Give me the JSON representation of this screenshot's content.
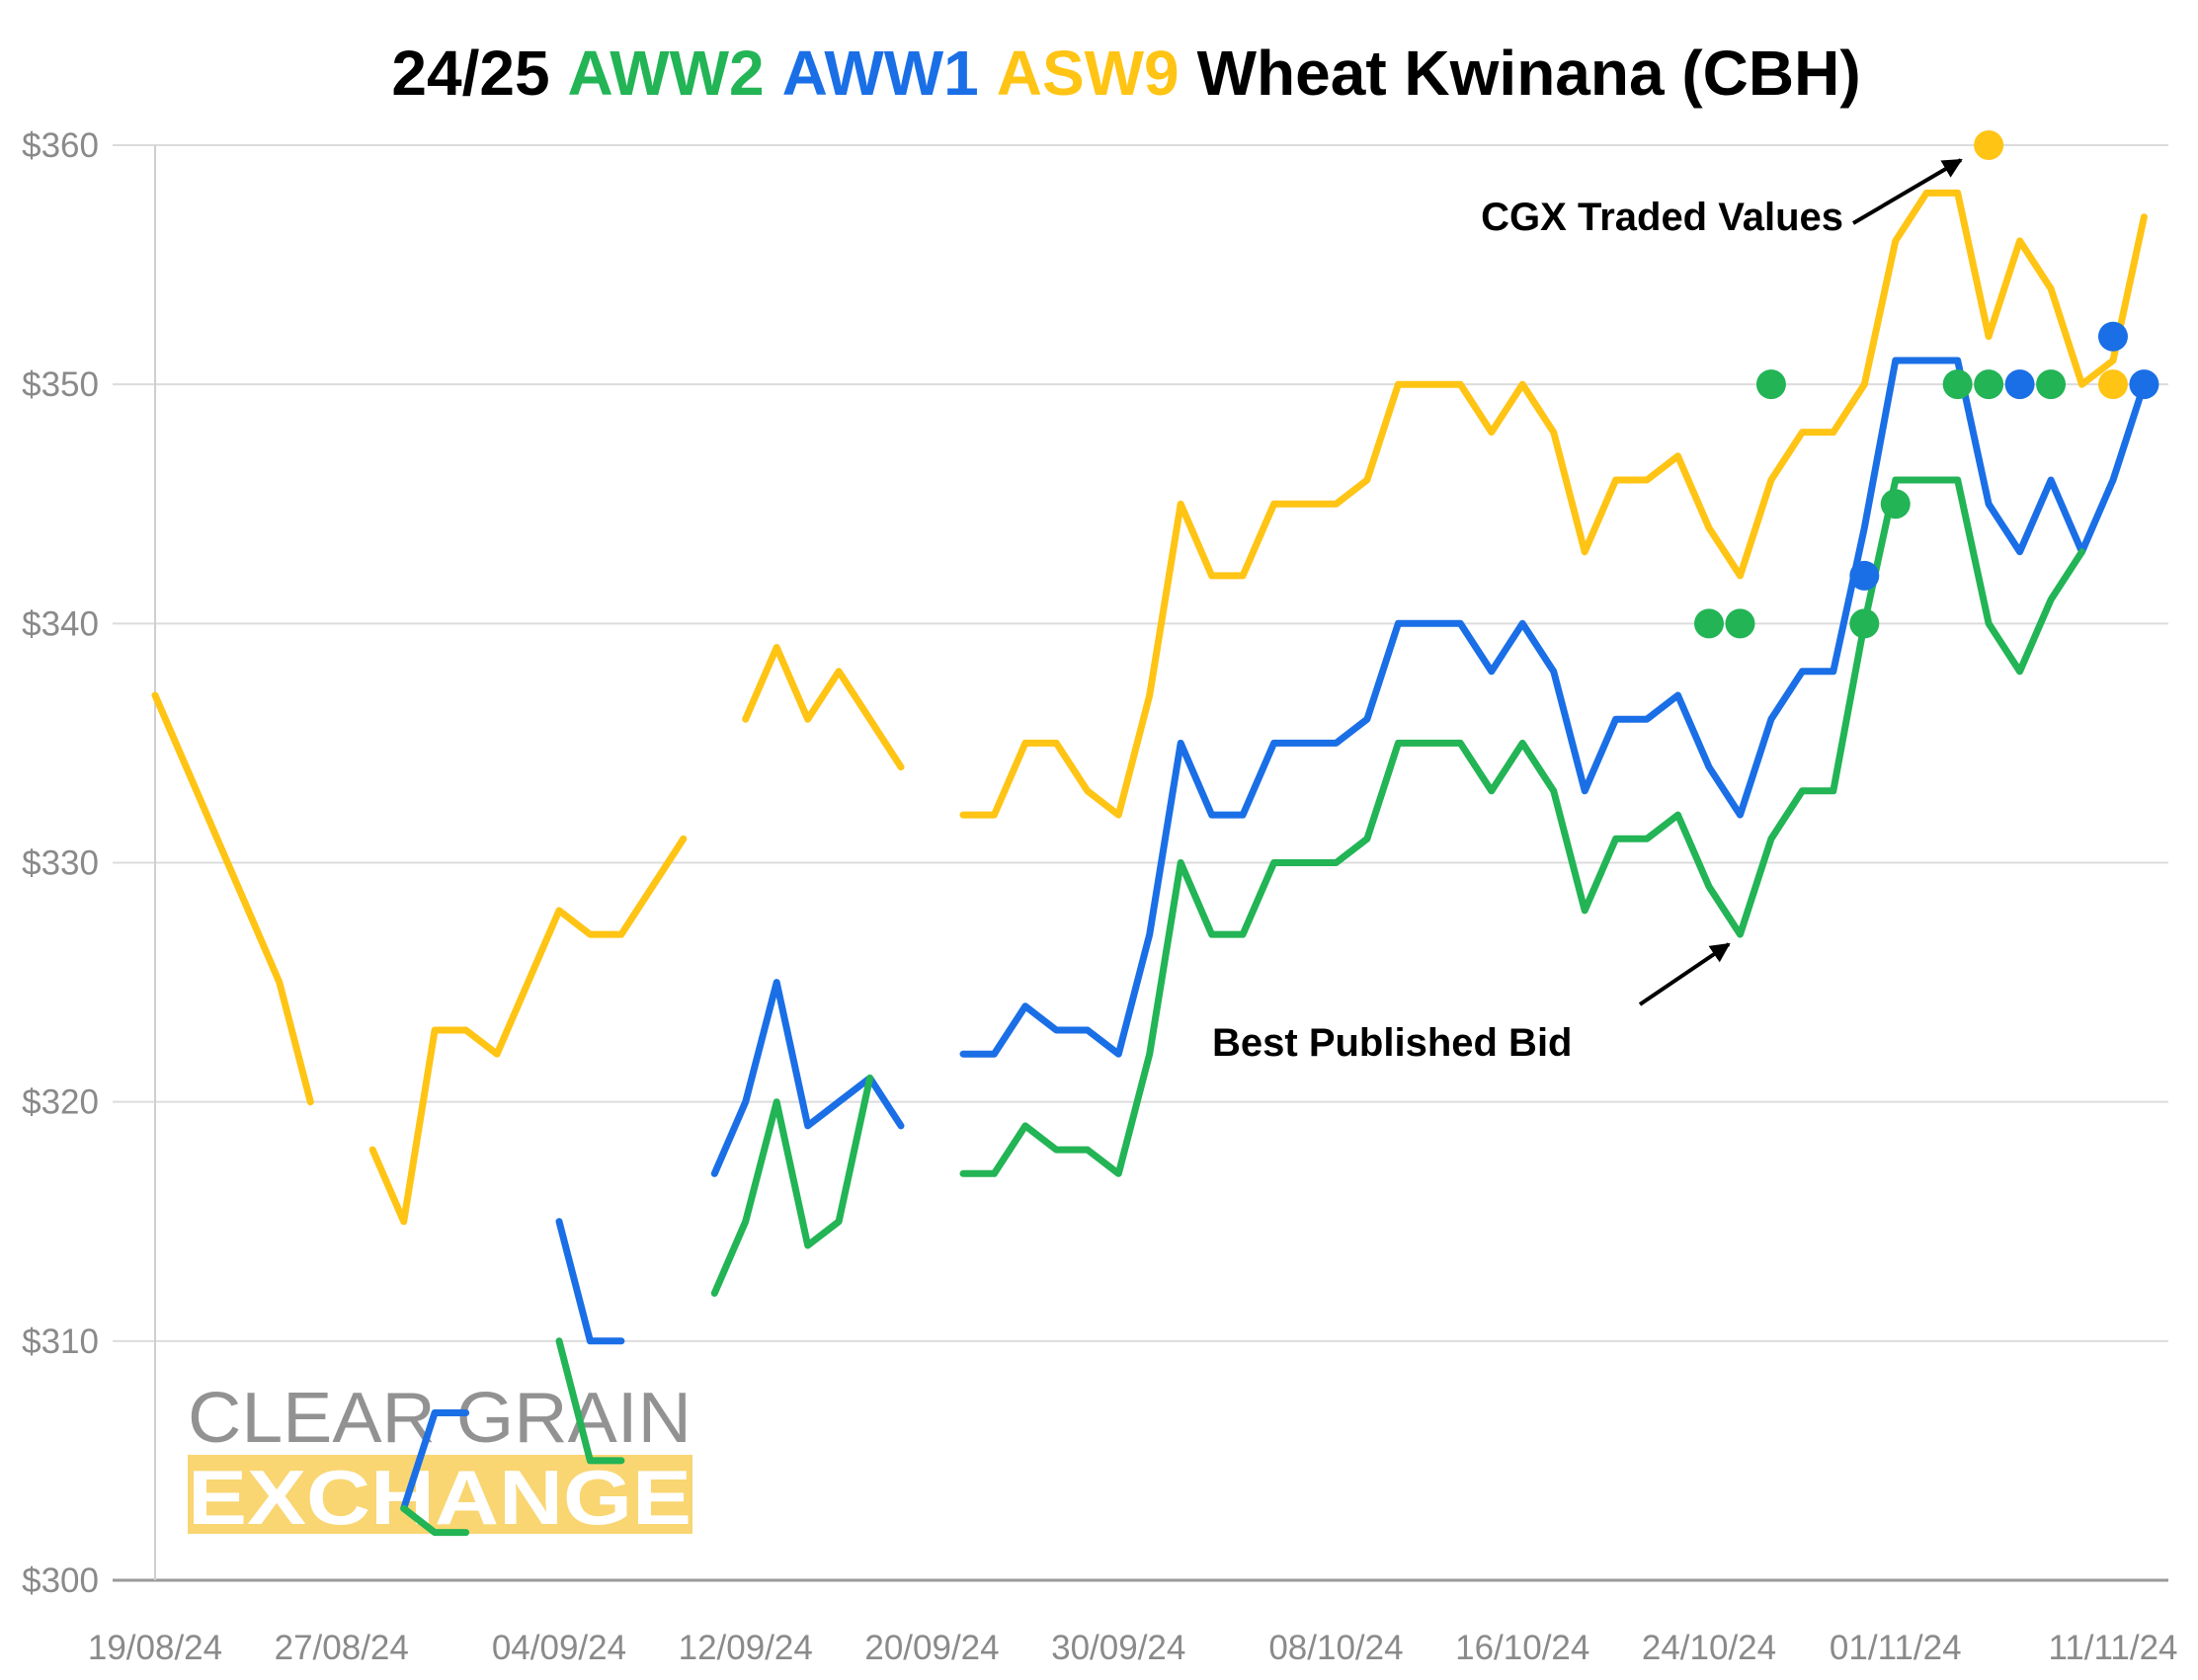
{
  "chart_data": {
    "type": "line",
    "title": [
      "24/25",
      "Wheat Kwinana (CBH)"
    ],
    "categories": [
      "19/08/24",
      null,
      null,
      null,
      null,
      null,
      "27/08/24",
      null,
      null,
      null,
      null,
      null,
      null,
      "04/09/24",
      null,
      null,
      null,
      null,
      null,
      "12/09/24",
      null,
      null,
      null,
      null,
      null,
      "20/09/24",
      null,
      null,
      null,
      null,
      null,
      "30/09/24",
      null,
      null,
      null,
      null,
      null,
      null,
      "08/10/24",
      null,
      null,
      null,
      null,
      null,
      "16/10/24",
      null,
      null,
      null,
      null,
      null,
      "24/10/24",
      null,
      null,
      null,
      null,
      null,
      "01/11/24",
      null,
      null,
      null,
      null,
      null,
      null,
      "11/11/24",
      null
    ],
    "series": [
      {
        "name": "ASW9",
        "color": "#ffc414",
        "values": [
          337,
          334,
          331,
          328,
          325,
          320,
          null,
          318,
          315,
          323,
          323,
          322,
          325,
          328,
          327,
          327,
          329,
          331,
          null,
          336,
          339,
          336,
          338,
          336,
          334,
          null,
          332,
          332,
          335,
          335,
          333,
          332,
          337,
          345,
          342,
          342,
          345,
          345,
          345,
          346,
          350,
          350,
          350,
          348,
          350,
          348,
          343,
          346,
          346,
          347,
          344,
          342,
          346,
          348,
          348,
          350,
          356,
          358,
          358,
          352,
          356,
          354,
          350,
          351,
          357
        ],
        "traded": [
          null,
          null,
          null,
          null,
          null,
          null,
          null,
          null,
          null,
          null,
          null,
          null,
          null,
          null,
          null,
          null,
          null,
          null,
          null,
          null,
          null,
          null,
          null,
          null,
          null,
          null,
          null,
          null,
          null,
          null,
          null,
          null,
          null,
          null,
          null,
          null,
          null,
          null,
          null,
          null,
          null,
          null,
          null,
          null,
          null,
          null,
          null,
          null,
          null,
          null,
          null,
          null,
          null,
          null,
          null,
          null,
          null,
          null,
          null,
          360,
          null,
          null,
          null,
          350,
          null
        ]
      },
      {
        "name": "AWW1",
        "color": "#1a6fe6",
        "values": [
          null,
          null,
          null,
          null,
          null,
          null,
          null,
          null,
          303,
          307,
          307,
          null,
          null,
          315,
          310,
          310,
          null,
          null,
          317,
          320,
          325,
          319,
          320,
          321,
          319,
          null,
          322,
          322,
          324,
          323,
          323,
          322,
          327,
          335,
          332,
          332,
          335,
          335,
          335,
          336,
          340,
          340,
          340,
          338,
          340,
          338,
          333,
          336,
          336,
          337,
          334,
          332,
          336,
          338,
          338,
          344,
          351,
          351,
          351,
          345,
          343,
          346,
          343,
          346,
          350
        ],
        "traded": [
          null,
          null,
          null,
          null,
          null,
          null,
          null,
          null,
          null,
          null,
          null,
          null,
          null,
          null,
          null,
          null,
          null,
          null,
          null,
          null,
          null,
          null,
          null,
          null,
          null,
          null,
          null,
          null,
          null,
          null,
          null,
          null,
          null,
          null,
          null,
          null,
          null,
          null,
          null,
          null,
          null,
          null,
          null,
          null,
          null,
          null,
          null,
          null,
          null,
          null,
          null,
          null,
          null,
          null,
          null,
          342,
          null,
          null,
          null,
          null,
          350,
          null,
          null,
          352,
          350
        ]
      },
      {
        "name": "AWW2",
        "color": "#22b455",
        "values": [
          null,
          null,
          null,
          null,
          null,
          null,
          null,
          null,
          303,
          302,
          302,
          null,
          null,
          310,
          305,
          305,
          null,
          null,
          312,
          315,
          320,
          314,
          315,
          321,
          null,
          null,
          317,
          317,
          319,
          318,
          318,
          317,
          322,
          330,
          327,
          327,
          330,
          330,
          330,
          331,
          335,
          335,
          335,
          333,
          335,
          333,
          328,
          331,
          331,
          332,
          329,
          327,
          331,
          333,
          333,
          340,
          346,
          346,
          346,
          340,
          338,
          341,
          343,
          null,
          null
        ],
        "traded": [
          null,
          null,
          null,
          null,
          null,
          null,
          null,
          null,
          null,
          null,
          null,
          null,
          null,
          null,
          null,
          null,
          null,
          null,
          null,
          null,
          null,
          null,
          null,
          null,
          null,
          null,
          null,
          null,
          null,
          null,
          null,
          null,
          null,
          null,
          null,
          null,
          null,
          null,
          null,
          null,
          null,
          null,
          null,
          null,
          null,
          null,
          null,
          null,
          null,
          null,
          340,
          340,
          350,
          null,
          null,
          340,
          345,
          null,
          350,
          350,
          null,
          350,
          null,
          null,
          null
        ]
      }
    ],
    "title_series_order": [
      2,
      1,
      0
    ],
    "ylim": [
      300,
      360
    ],
    "yticks": [
      {
        "value": 300,
        "label": "$300"
      },
      {
        "value": 310,
        "label": "$310"
      },
      {
        "value": 320,
        "label": "$320"
      },
      {
        "value": 330,
        "label": "$330"
      },
      {
        "value": 340,
        "label": "$340"
      },
      {
        "value": 350,
        "label": "$350"
      },
      {
        "value": 360,
        "label": "$360"
      }
    ],
    "grid": true,
    "annotations": [
      "CGX Traded Values",
      "Best Published Bid"
    ],
    "watermark": [
      "CLEAR GRAIN",
      "EXCHANGE"
    ]
  }
}
